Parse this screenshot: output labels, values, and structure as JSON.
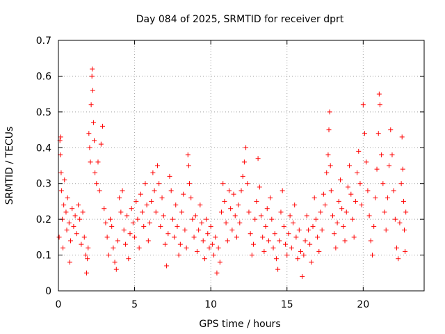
{
  "chart_data": {
    "type": "scatter",
    "title": "Day 084 of 2025, SRMTID for receiver dprt",
    "xlabel": "GPS time / hours",
    "ylabel": "SRMTID / TECUs",
    "xlim": [
      0,
      24
    ],
    "ylim": [
      0,
      0.7
    ],
    "xticks": [
      0,
      5,
      10,
      15,
      20
    ],
    "xtick_labels": [
      "0",
      "5",
      "10",
      "15",
      "20"
    ],
    "yticks": [
      0,
      0.1,
      0.2,
      0.3,
      0.4,
      0.5,
      0.6,
      0.7
    ],
    "ytick_labels": [
      "0",
      "0.1",
      "0.2",
      "0.3",
      "0.4",
      "0.5",
      "0.6",
      "0.7"
    ],
    "grid": true,
    "marker": "plus",
    "color": "#ff0000",
    "series": [
      {
        "name": "SRMTID",
        "points": [
          [
            0.05,
            0.15
          ],
          [
            0.1,
            0.42
          ],
          [
            0.12,
            0.38
          ],
          [
            0.15,
            0.43
          ],
          [
            0.18,
            0.33
          ],
          [
            0.2,
            0.28
          ],
          [
            0.25,
            0.2
          ],
          [
            0.3,
            0.12
          ],
          [
            0.35,
            0.24
          ],
          [
            0.4,
            0.31
          ],
          [
            0.5,
            0.22
          ],
          [
            0.55,
            0.17
          ],
          [
            0.6,
            0.26
          ],
          [
            0.7,
            0.19
          ],
          [
            0.75,
            0.08
          ],
          [
            0.8,
            0.14
          ],
          [
            0.9,
            0.23
          ],
          [
            1.0,
            0.18
          ],
          [
            1.1,
            0.21
          ],
          [
            1.2,
            0.16
          ],
          [
            1.3,
            0.24
          ],
          [
            1.4,
            0.2
          ],
          [
            1.5,
            0.13
          ],
          [
            1.6,
            0.22
          ],
          [
            1.7,
            0.15
          ],
          [
            1.8,
            0.1
          ],
          [
            1.85,
            0.05
          ],
          [
            1.9,
            0.09
          ],
          [
            1.95,
            0.12
          ],
          [
            2.0,
            0.44
          ],
          [
            2.05,
            0.4
          ],
          [
            2.1,
            0.36
          ],
          [
            2.15,
            0.52
          ],
          [
            2.2,
            0.6
          ],
          [
            2.22,
            0.62
          ],
          [
            2.25,
            0.56
          ],
          [
            2.3,
            0.47
          ],
          [
            2.35,
            0.42
          ],
          [
            2.4,
            0.33
          ],
          [
            2.5,
            0.3
          ],
          [
            2.6,
            0.36
          ],
          [
            2.7,
            0.28
          ],
          [
            2.8,
            0.41
          ],
          [
            2.9,
            0.46
          ],
          [
            3.0,
            0.23
          ],
          [
            3.1,
            0.19
          ],
          [
            3.2,
            0.15
          ],
          [
            3.3,
            0.1
          ],
          [
            3.4,
            0.2
          ],
          [
            3.5,
            0.18
          ],
          [
            3.6,
            0.12
          ],
          [
            3.7,
            0.08
          ],
          [
            3.8,
            0.06
          ],
          [
            3.9,
            0.14
          ],
          [
            4.0,
            0.26
          ],
          [
            4.1,
            0.22
          ],
          [
            4.2,
            0.28
          ],
          [
            4.3,
            0.17
          ],
          [
            4.4,
            0.13
          ],
          [
            4.5,
            0.21
          ],
          [
            4.6,
            0.09
          ],
          [
            4.7,
            0.16
          ],
          [
            4.8,
            0.23
          ],
          [
            4.9,
            0.19
          ],
          [
            5.0,
            0.15
          ],
          [
            5.1,
            0.25
          ],
          [
            5.2,
            0.2
          ],
          [
            5.3,
            0.12
          ],
          [
            5.4,
            0.27
          ],
          [
            5.5,
            0.22
          ],
          [
            5.6,
            0.18
          ],
          [
            5.7,
            0.3
          ],
          [
            5.8,
            0.24
          ],
          [
            5.9,
            0.14
          ],
          [
            6.0,
            0.19
          ],
          [
            6.1,
            0.25
          ],
          [
            6.2,
            0.33
          ],
          [
            6.3,
            0.28
          ],
          [
            6.4,
            0.22
          ],
          [
            6.5,
            0.35
          ],
          [
            6.6,
            0.3
          ],
          [
            6.7,
            0.18
          ],
          [
            6.8,
            0.26
          ],
          [
            6.9,
            0.21
          ],
          [
            7.0,
            0.13
          ],
          [
            7.1,
            0.07
          ],
          [
            7.2,
            0.16
          ],
          [
            7.3,
            0.32
          ],
          [
            7.4,
            0.28
          ],
          [
            7.5,
            0.2
          ],
          [
            7.6,
            0.15
          ],
          [
            7.7,
            0.24
          ],
          [
            7.8,
            0.18
          ],
          [
            7.9,
            0.1
          ],
          [
            8.0,
            0.13
          ],
          [
            8.1,
            0.22
          ],
          [
            8.2,
            0.27
          ],
          [
            8.3,
            0.17
          ],
          [
            8.4,
            0.12
          ],
          [
            8.5,
            0.38
          ],
          [
            8.55,
            0.35
          ],
          [
            8.6,
            0.3
          ],
          [
            8.7,
            0.26
          ],
          [
            8.8,
            0.2
          ],
          [
            8.9,
            0.15
          ],
          [
            9.0,
            0.21
          ],
          [
            9.1,
            0.11
          ],
          [
            9.2,
            0.17
          ],
          [
            9.3,
            0.24
          ],
          [
            9.4,
            0.19
          ],
          [
            9.5,
            0.14
          ],
          [
            9.6,
            0.09
          ],
          [
            9.7,
            0.2
          ],
          [
            9.8,
            0.16
          ],
          [
            9.9,
            0.12
          ],
          [
            10.0,
            0.18
          ],
          [
            10.1,
            0.13
          ],
          [
            10.2,
            0.1
          ],
          [
            10.3,
            0.15
          ],
          [
            10.4,
            0.05
          ],
          [
            10.5,
            0.12
          ],
          [
            10.6,
            0.08
          ],
          [
            10.7,
            0.22
          ],
          [
            10.8,
            0.3
          ],
          [
            10.9,
            0.25
          ],
          [
            11.0,
            0.19
          ],
          [
            11.1,
            0.14
          ],
          [
            11.2,
            0.28
          ],
          [
            11.3,
            0.23
          ],
          [
            11.4,
            0.17
          ],
          [
            11.5,
            0.27
          ],
          [
            11.6,
            0.21
          ],
          [
            11.7,
            0.15
          ],
          [
            11.8,
            0.24
          ],
          [
            11.9,
            0.19
          ],
          [
            12.0,
            0.28
          ],
          [
            12.1,
            0.32
          ],
          [
            12.2,
            0.36
          ],
          [
            12.3,
            0.4
          ],
          [
            12.4,
            0.3
          ],
          [
            12.5,
            0.22
          ],
          [
            12.6,
            0.16
          ],
          [
            12.7,
            0.1
          ],
          [
            12.8,
            0.13
          ],
          [
            12.9,
            0.2
          ],
          [
            13.0,
            0.25
          ],
          [
            13.1,
            0.37
          ],
          [
            13.2,
            0.29
          ],
          [
            13.3,
            0.21
          ],
          [
            13.4,
            0.15
          ],
          [
            13.5,
            0.11
          ],
          [
            13.6,
            0.18
          ],
          [
            13.7,
            0.23
          ],
          [
            13.8,
            0.14
          ],
          [
            13.9,
            0.26
          ],
          [
            14.0,
            0.2
          ],
          [
            14.1,
            0.12
          ],
          [
            14.2,
            0.16
          ],
          [
            14.3,
            0.09
          ],
          [
            14.4,
            0.06
          ],
          [
            14.5,
            0.14
          ],
          [
            14.6,
            0.22
          ],
          [
            14.7,
            0.28
          ],
          [
            14.8,
            0.18
          ],
          [
            14.9,
            0.13
          ],
          [
            15.0,
            0.1
          ],
          [
            15.1,
            0.16
          ],
          [
            15.2,
            0.21
          ],
          [
            15.3,
            0.12
          ],
          [
            15.4,
            0.19
          ],
          [
            15.5,
            0.24
          ],
          [
            15.6,
            0.15
          ],
          [
            15.7,
            0.09
          ],
          [
            15.8,
            0.17
          ],
          [
            15.9,
            0.11
          ],
          [
            16.0,
            0.04
          ],
          [
            16.1,
            0.1
          ],
          [
            16.2,
            0.14
          ],
          [
            16.3,
            0.21
          ],
          [
            16.4,
            0.17
          ],
          [
            16.5,
            0.13
          ],
          [
            16.6,
            0.08
          ],
          [
            16.7,
            0.18
          ],
          [
            16.8,
            0.26
          ],
          [
            16.9,
            0.2
          ],
          [
            17.0,
            0.15
          ],
          [
            17.1,
            0.11
          ],
          [
            17.2,
            0.22
          ],
          [
            17.3,
            0.17
          ],
          [
            17.4,
            0.27
          ],
          [
            17.5,
            0.24
          ],
          [
            17.6,
            0.33
          ],
          [
            17.7,
            0.38
          ],
          [
            17.75,
            0.45
          ],
          [
            17.8,
            0.5
          ],
          [
            17.85,
            0.35
          ],
          [
            17.9,
            0.28
          ],
          [
            18.0,
            0.21
          ],
          [
            18.1,
            0.16
          ],
          [
            18.2,
            0.12
          ],
          [
            18.3,
            0.19
          ],
          [
            18.4,
            0.25
          ],
          [
            18.5,
            0.31
          ],
          [
            18.6,
            0.23
          ],
          [
            18.7,
            0.18
          ],
          [
            18.8,
            0.14
          ],
          [
            18.9,
            0.22
          ],
          [
            19.0,
            0.29
          ],
          [
            19.1,
            0.35
          ],
          [
            19.2,
            0.27
          ],
          [
            19.3,
            0.2
          ],
          [
            19.4,
            0.15
          ],
          [
            19.5,
            0.25
          ],
          [
            19.6,
            0.33
          ],
          [
            19.7,
            0.39
          ],
          [
            19.8,
            0.3
          ],
          [
            19.9,
            0.24
          ],
          [
            20.0,
            0.52
          ],
          [
            20.1,
            0.44
          ],
          [
            20.2,
            0.36
          ],
          [
            20.3,
            0.28
          ],
          [
            20.4,
            0.21
          ],
          [
            20.5,
            0.14
          ],
          [
            20.6,
            0.1
          ],
          [
            20.7,
            0.18
          ],
          [
            20.8,
            0.26
          ],
          [
            20.9,
            0.34
          ],
          [
            21.0,
            0.44
          ],
          [
            21.05,
            0.55
          ],
          [
            21.1,
            0.52
          ],
          [
            21.2,
            0.38
          ],
          [
            21.3,
            0.3
          ],
          [
            21.4,
            0.22
          ],
          [
            21.5,
            0.17
          ],
          [
            21.6,
            0.26
          ],
          [
            21.7,
            0.35
          ],
          [
            21.8,
            0.45
          ],
          [
            21.9,
            0.38
          ],
          [
            22.0,
            0.28
          ],
          [
            22.1,
            0.2
          ],
          [
            22.2,
            0.12
          ],
          [
            22.3,
            0.09
          ],
          [
            22.4,
            0.19
          ],
          [
            22.5,
            0.3
          ],
          [
            22.55,
            0.43
          ],
          [
            22.6,
            0.34
          ],
          [
            22.65,
            0.25
          ],
          [
            22.7,
            0.17
          ],
          [
            22.75,
            0.11
          ],
          [
            22.8,
            0.22
          ]
        ]
      }
    ]
  }
}
